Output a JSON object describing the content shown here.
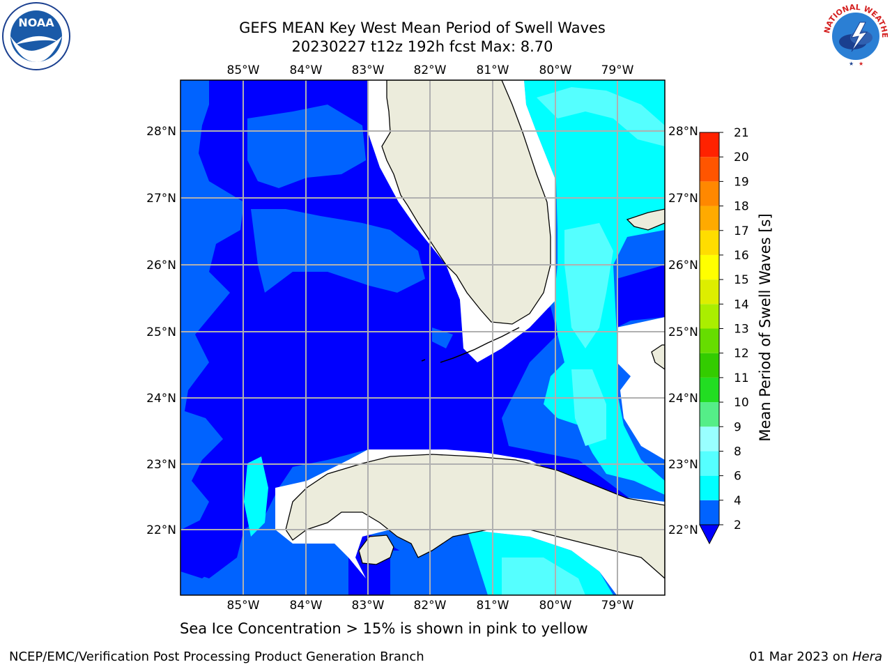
{
  "title": {
    "line1": "GEFS MEAN Key West Mean Period of Swell Waves",
    "line2": "20230227 t12z 192h fcst   Max: 8.70"
  },
  "map": {
    "lon_labels": [
      "85°W",
      "84°W",
      "83°W",
      "82°W",
      "81°W",
      "80°W",
      "79°W"
    ],
    "lat_labels": [
      "28°N",
      "27°N",
      "26°N",
      "25°N",
      "24°N",
      "23°N",
      "22°N"
    ],
    "colors": {
      "level_2_4": "#0063ff",
      "level_lt2": "#0000ff",
      "level_4_6": "#00ffff",
      "level_6_8": "#55ffff",
      "land": "#ececdc",
      "grid": "#b0b0b0"
    }
  },
  "colorbar": {
    "title": "Mean Period of Swell Waves [s]",
    "ticks": [
      "2",
      "4",
      "6",
      "8",
      "9",
      "10",
      "11",
      "12",
      "13",
      "14",
      "15",
      "16",
      "17",
      "18",
      "19",
      "20",
      "21"
    ],
    "colors": [
      "#0063ff",
      "#00ffff",
      "#55ffff",
      "#99ffff",
      "#55ee88",
      "#22dd22",
      "#33cc00",
      "#66dd00",
      "#aaee00",
      "#ddee00",
      "#ffff00",
      "#ffdd00",
      "#ffaa00",
      "#ff8800",
      "#ff5500",
      "#ff2200",
      "#ff0000"
    ]
  },
  "note": "Sea Ice Concentration > 15% is shown in pink to yellow",
  "footer": {
    "left": "NCEP/EMC/Verification Post Processing Product Generation Branch",
    "right_date": "01 Mar 2023 on ",
    "right_machine": "Hera"
  },
  "logos": {
    "noaa_text": "NOAA",
    "nws_text": "NATIONAL WEATHER SERVICE"
  }
}
